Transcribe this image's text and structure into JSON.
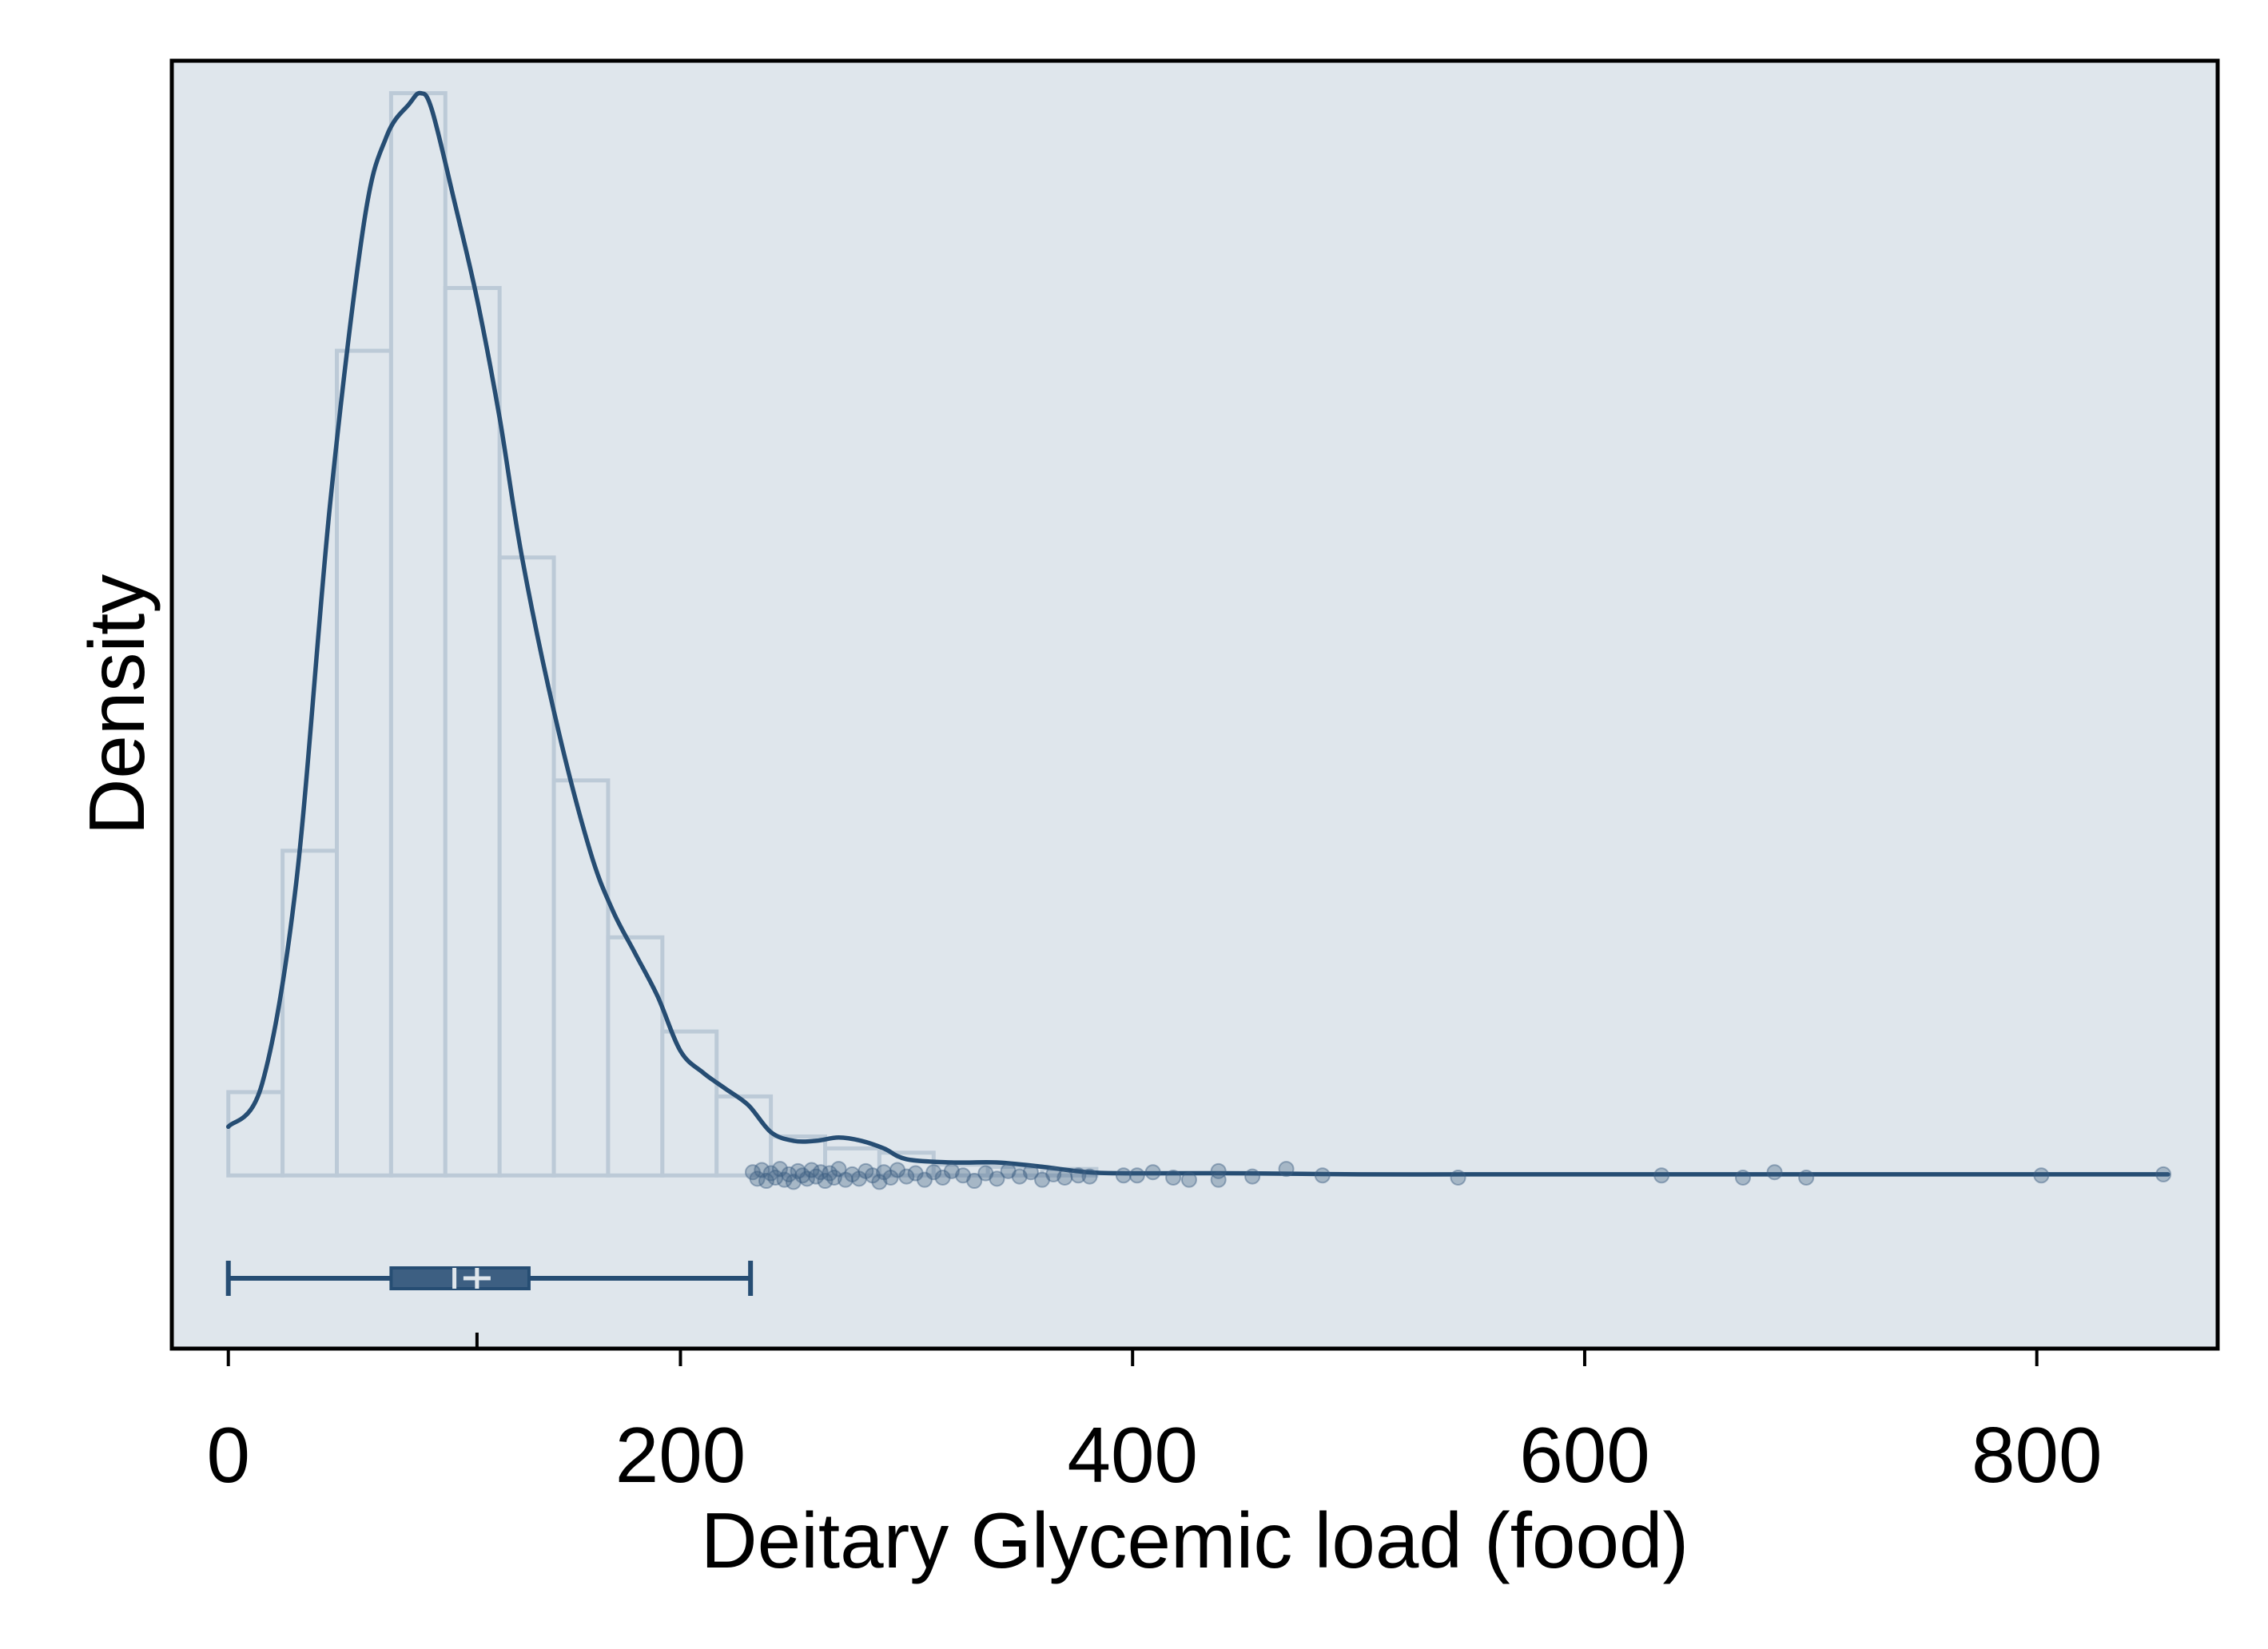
{
  "chart_data": {
    "type": "histogram",
    "xlabel": "Deitary Glycemic load (food)",
    "ylabel": "Density",
    "xlim": [
      -25,
      880
    ],
    "ylim": [
      -0.0016,
      0.0103
    ],
    "xticks": [
      0,
      200,
      400,
      600,
      800
    ],
    "xtick_labels": [
      "0",
      "200",
      "400",
      "600",
      "800"
    ],
    "grid": false,
    "legend": "none",
    "colors": {
      "plot_background": "#dfe6ec",
      "bar_fill": "#dfe6ec",
      "bar_edge": "#bccad7",
      "curve": "#264d73",
      "box_fill": "#3d5f82",
      "outlier": "#3d5f82"
    },
    "histogram": {
      "bin_edges": [
        0,
        24,
        48,
        72,
        96,
        120,
        144,
        168,
        192,
        216,
        240,
        264,
        288,
        312,
        336,
        360,
        384
      ],
      "densities": [
        0.00077,
        0.003,
        0.00762,
        0.01,
        0.0082,
        0.00571,
        0.00365,
        0.0022,
        0.00133,
        0.00073,
        0.00036,
        0.00025,
        0.00021,
        0.0001,
        8e-05,
        6e-05
      ]
    },
    "density_curve": {
      "x": [
        0,
        15,
        30,
        45,
        60,
        70,
        80,
        85,
        90,
        100,
        110,
        120,
        130,
        145,
        160,
        170,
        180,
        190,
        200,
        210,
        220,
        230,
        240,
        250,
        260,
        270,
        280,
        290,
        300,
        320,
        340,
        360,
        380,
        400,
        450,
        500,
        550,
        600,
        650,
        700,
        750,
        800,
        858
      ],
      "y": [
        0.00045,
        0.00085,
        0.0027,
        0.0062,
        0.0088,
        0.0096,
        0.0099,
        0.01,
        0.00985,
        0.009,
        0.0081,
        0.007,
        0.0057,
        0.0042,
        0.003,
        0.00245,
        0.00205,
        0.00165,
        0.00115,
        0.00095,
        0.0008,
        0.00065,
        0.0004,
        0.00032,
        0.00032,
        0.00035,
        0.00032,
        0.00025,
        0.00015,
        0.00012,
        0.00012,
        8e-05,
        3e-05,
        2e-05,
        2e-05,
        1e-05,
        1e-05,
        1e-05,
        1e-05,
        1e-05,
        1e-05,
        1e-05,
        1e-05
      ]
    },
    "boxplot": {
      "whisker_low": 0,
      "q1": 72,
      "median": 100,
      "mean": 110,
      "q3": 133,
      "whisker_high": 231
    },
    "outliers": [
      {
        "x": 232,
        "y": 3e-05
      },
      {
        "x": 234,
        "y": -3e-05
      },
      {
        "x": 236,
        "y": 5e-05
      },
      {
        "x": 238,
        "y": -5e-05
      },
      {
        "x": 240,
        "y": 2e-05
      },
      {
        "x": 242,
        "y": -2e-05
      },
      {
        "x": 244,
        "y": 6e-05
      },
      {
        "x": 246,
        "y": -4e-05
      },
      {
        "x": 248,
        "y": 1e-05
      },
      {
        "x": 250,
        "y": -6e-05
      },
      {
        "x": 252,
        "y": 4e-05
      },
      {
        "x": 254,
        "y": 0.0
      },
      {
        "x": 256,
        "y": -3e-05
      },
      {
        "x": 258,
        "y": 5e-05
      },
      {
        "x": 260,
        "y": -1e-05
      },
      {
        "x": 262,
        "y": 3e-05
      },
      {
        "x": 264,
        "y": -5e-05
      },
      {
        "x": 266,
        "y": 2e-05
      },
      {
        "x": 268,
        "y": -2e-05
      },
      {
        "x": 270,
        "y": 6e-05
      },
      {
        "x": 273,
        "y": -4e-05
      },
      {
        "x": 276,
        "y": 1e-05
      },
      {
        "x": 279,
        "y": -3e-05
      },
      {
        "x": 282,
        "y": 4e-05
      },
      {
        "x": 285,
        "y": 0.0
      },
      {
        "x": 288,
        "y": -6e-05
      },
      {
        "x": 290,
        "y": 3e-05
      },
      {
        "x": 293,
        "y": -2e-05
      },
      {
        "x": 296,
        "y": 5e-05
      },
      {
        "x": 300,
        "y": -1e-05
      },
      {
        "x": 304,
        "y": 2e-05
      },
      {
        "x": 308,
        "y": -4e-05
      },
      {
        "x": 312,
        "y": 3e-05
      },
      {
        "x": 316,
        "y": -2e-05
      },
      {
        "x": 320,
        "y": 4e-05
      },
      {
        "x": 325,
        "y": 0.0
      },
      {
        "x": 330,
        "y": -5e-05
      },
      {
        "x": 335,
        "y": 2e-05
      },
      {
        "x": 340,
        "y": -3e-05
      },
      {
        "x": 345,
        "y": 4e-05
      },
      {
        "x": 350,
        "y": -1e-05
      },
      {
        "x": 355,
        "y": 3e-05
      },
      {
        "x": 360,
        "y": -4e-05
      },
      {
        "x": 365,
        "y": 1e-05
      },
      {
        "x": 370,
        "y": -2e-05
      },
      {
        "x": 376,
        "y": 0.0
      },
      {
        "x": 381,
        "y": -1e-05
      },
      {
        "x": 396,
        "y": 0.0
      },
      {
        "x": 402,
        "y": 0.0
      },
      {
        "x": 409,
        "y": 3e-05
      },
      {
        "x": 418,
        "y": -2e-05
      },
      {
        "x": 425,
        "y": -4e-05
      },
      {
        "x": 438,
        "y": 4e-05
      },
      {
        "x": 438,
        "y": -4e-05
      },
      {
        "x": 453,
        "y": -1e-05
      },
      {
        "x": 468,
        "y": 6e-05
      },
      {
        "x": 484,
        "y": 0.0
      },
      {
        "x": 544,
        "y": -2e-05
      },
      {
        "x": 634,
        "y": 0.0
      },
      {
        "x": 670,
        "y": -2e-05
      },
      {
        "x": 684,
        "y": 3e-05
      },
      {
        "x": 698,
        "y": -2e-05
      },
      {
        "x": 802,
        "y": 0.0
      },
      {
        "x": 856,
        "y": 1e-05
      }
    ]
  }
}
